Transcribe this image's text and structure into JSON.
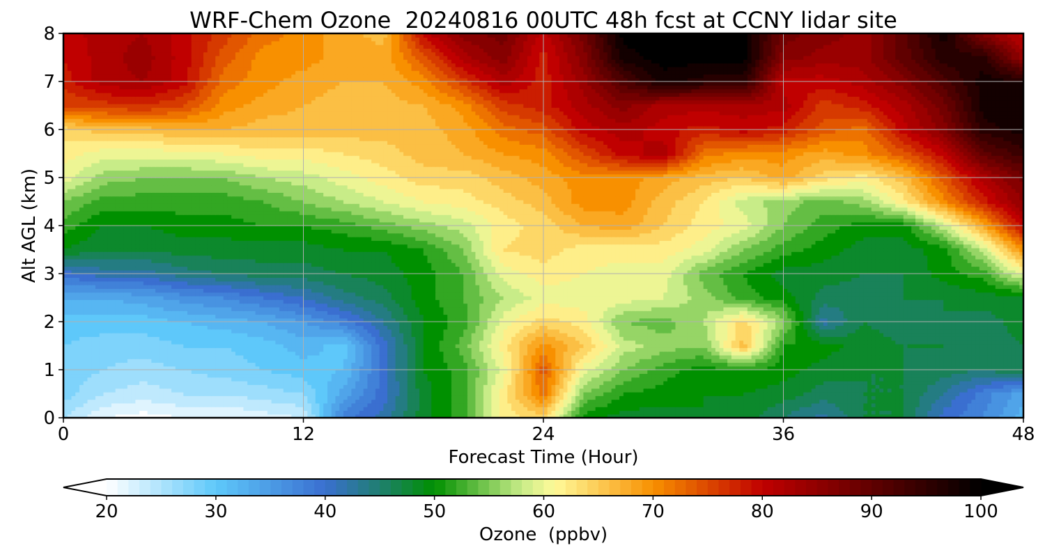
{
  "chart_data": {
    "type": "heatmap",
    "title": "WRF-Chem Ozone  20240816 00UTC 48h fcst at CCNY lidar site",
    "xlabel": "Forecast Time (Hour)",
    "ylabel": "Alt AGL (km)",
    "xlim": [
      0,
      48
    ],
    "ylim": [
      0,
      8
    ],
    "xticks": [
      0,
      12,
      24,
      36,
      48
    ],
    "yticks": [
      0,
      1,
      2,
      3,
      4,
      5,
      6,
      7,
      8
    ],
    "grid": true,
    "z_unit": "ppbv",
    "z_x_hours": [
      0,
      2,
      4,
      6,
      8,
      10,
      12,
      14,
      16,
      18,
      20,
      22,
      24,
      26,
      28,
      30,
      32,
      34,
      36,
      38,
      40,
      42,
      44,
      46,
      48
    ],
    "z_y_km": [
      0,
      0.5,
      1,
      1.5,
      2,
      2.5,
      3,
      3.5,
      4,
      4.5,
      5,
      5.5,
      6,
      6.5,
      7,
      7.5,
      8
    ],
    "z_values_ppbv": [
      [
        25,
        21,
        20,
        21,
        21,
        22,
        23,
        38,
        42,
        48,
        52,
        62,
        64,
        50,
        48,
        48,
        49,
        48,
        45,
        42,
        47,
        47,
        40,
        37,
        32
      ],
      [
        28,
        25,
        24,
        25,
        25,
        26,
        27,
        34,
        40,
        48,
        52,
        62,
        72,
        55,
        51,
        50,
        49,
        49,
        48,
        46,
        47,
        47,
        43,
        38,
        34
      ],
      [
        28,
        27,
        26,
        27,
        28,
        29,
        30,
        31,
        40,
        49,
        52,
        60,
        74,
        60,
        55,
        52,
        50,
        51,
        50,
        48,
        47,
        47,
        46,
        45,
        47
      ],
      [
        29,
        28,
        28,
        29,
        29,
        30,
        32,
        30,
        40,
        49,
        54,
        62,
        70,
        65,
        58,
        56,
        55,
        66,
        51,
        50,
        48,
        47,
        47,
        46,
        47
      ],
      [
        30,
        30,
        30,
        31,
        32,
        33,
        35,
        38,
        43,
        49,
        52,
        60,
        64,
        62,
        55,
        54,
        57,
        64,
        56,
        42,
        47,
        46,
        47,
        46,
        48
      ],
      [
        33,
        33,
        34,
        36,
        37,
        39,
        41,
        44,
        46,
        50,
        53,
        57,
        60,
        60,
        60,
        59,
        56,
        52,
        50,
        46,
        46,
        47,
        47,
        48,
        48
      ],
      [
        40,
        42,
        42,
        44,
        45,
        46,
        46,
        47,
        48,
        50,
        53,
        60,
        62,
        61,
        60,
        60,
        54,
        51,
        48,
        48,
        47,
        47,
        50,
        52,
        60
      ],
      [
        49,
        47,
        47,
        48,
        48,
        48,
        48,
        49,
        49,
        51,
        55,
        63,
        64,
        62,
        62,
        62,
        60,
        55,
        52,
        50,
        48,
        48,
        50,
        58,
        70
      ],
      [
        52,
        49,
        49,
        50,
        50,
        51,
        51,
        52,
        54,
        56,
        58,
        62,
        64,
        67,
        68,
        65,
        62,
        60,
        55,
        52,
        50,
        50,
        58,
        68,
        80
      ],
      [
        55,
        52,
        52,
        52,
        52,
        53,
        55,
        57,
        59,
        61,
        62,
        64,
        66,
        70,
        70,
        66,
        63,
        58,
        56,
        54,
        56,
        62,
        70,
        78,
        85
      ],
      [
        60,
        56,
        55,
        55,
        55,
        57,
        58,
        60,
        62,
        64,
        64,
        66,
        68,
        70,
        70,
        68,
        66,
        65,
        68,
        64,
        62,
        66,
        74,
        82,
        88
      ],
      [
        62,
        60,
        60,
        60,
        61,
        62,
        62,
        63,
        64,
        66,
        67,
        69,
        70,
        75,
        80,
        82,
        72,
        70,
        70,
        68,
        70,
        74,
        80,
        90,
        94
      ],
      [
        64,
        66,
        66,
        67,
        67,
        66,
        66,
        66,
        66,
        66,
        68,
        72,
        74,
        80,
        82,
        80,
        78,
        80,
        78,
        74,
        72,
        80,
        86,
        96,
        98
      ],
      [
        75,
        76,
        77,
        75,
        70,
        68,
        67,
        66,
        66,
        67,
        70,
        76,
        78,
        82,
        86,
        82,
        82,
        82,
        82,
        76,
        78,
        82,
        88,
        98,
        99
      ],
      [
        78,
        82,
        83,
        80,
        72,
        70,
        68,
        67,
        67,
        70,
        76,
        82,
        78,
        84,
        92,
        98,
        96,
        96,
        80,
        80,
        82,
        86,
        92,
        98,
        97
      ],
      [
        79,
        82,
        84,
        80,
        74,
        70,
        70,
        68,
        68,
        74,
        82,
        86,
        78,
        86,
        98,
        100,
        100,
        100,
        86,
        84,
        84,
        90,
        96,
        96,
        84
      ],
      [
        80,
        82,
        83,
        80,
        76,
        72,
        70,
        68,
        66,
        80,
        86,
        88,
        80,
        88,
        100,
        100,
        100,
        100,
        88,
        86,
        84,
        90,
        98,
        86,
        80
      ]
    ],
    "colorbar": {
      "label": "Ozone  (ppbv)",
      "ticks": [
        20,
        30,
        40,
        50,
        60,
        70,
        80,
        90,
        100
      ],
      "min": 20,
      "max": 100,
      "extend": "both",
      "colors": {
        "white": "#ffffff",
        "light_blue": "#5ec8fa",
        "blue": "#3a6fd0",
        "teal": "#1f7f6f",
        "green": "#009000",
        "light_green": "#c8ec88",
        "light_yellow": "#fffa9a",
        "orange": "#f89000",
        "red": "#c00000",
        "dark_red": "#600000",
        "black": "#000000"
      }
    }
  }
}
